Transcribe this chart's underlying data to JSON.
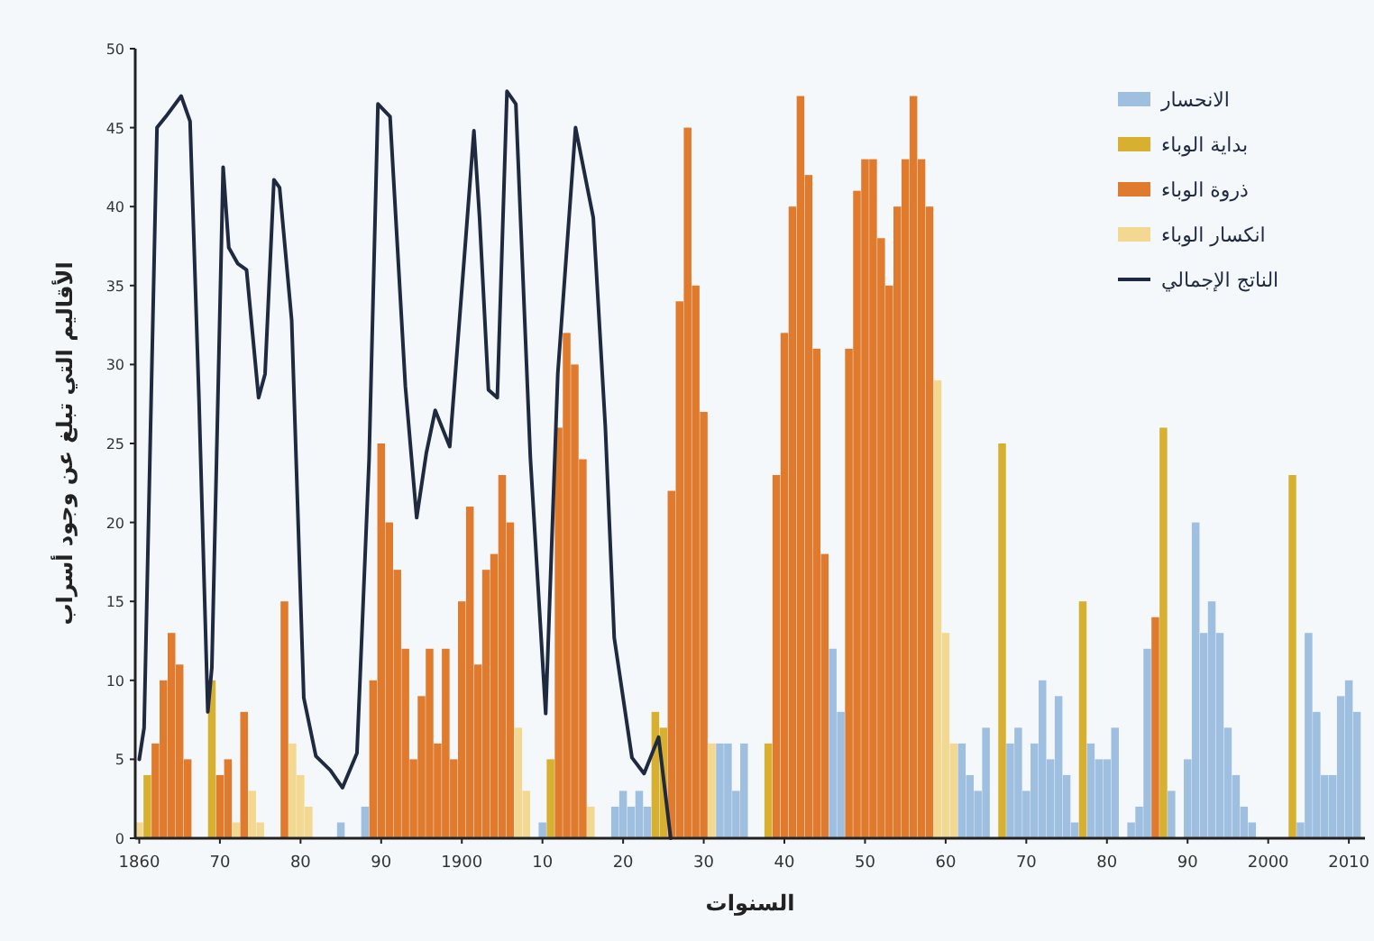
{
  "chart_data": {
    "type": "bar",
    "xlabel": "السنوات",
    "ylabel": "الأقاليم التي تبلغ عن وجود أسراب",
    "xlim": [
      1859.5,
      2012
    ],
    "ylim": [
      0,
      50
    ],
    "xticks": [
      1860,
      {
        "value": 1870,
        "label": "70"
      },
      {
        "value": 1880,
        "label": "80"
      },
      {
        "value": 1890,
        "label": "90"
      },
      1900,
      {
        "value": 1910,
        "label": "10"
      },
      {
        "value": 1920,
        "label": "20"
      },
      {
        "value": 1930,
        "label": "30"
      },
      {
        "value": 1940,
        "label": "40"
      },
      {
        "value": 1950,
        "label": "50"
      },
      {
        "value": 1960,
        "label": "60"
      },
      {
        "value": 1970,
        "label": "70"
      },
      {
        "value": 1980,
        "label": "80"
      },
      {
        "value": 1990,
        "label": "90"
      },
      2000,
      2010
    ],
    "yticks": [
      0,
      5,
      10,
      15,
      20,
      25,
      30,
      35,
      40,
      45,
      50
    ],
    "legend": "top right",
    "grid": false,
    "series": [
      {
        "name": "الانحسار",
        "color": "#9fbfe0",
        "x": [
          1885,
          1888,
          1910,
          1919,
          1920,
          1921,
          1922,
          1923,
          1932,
          1933,
          1934,
          1935,
          1946,
          1947,
          1962,
          1963,
          1964,
          1965,
          1968,
          1969,
          1970,
          1971,
          1972,
          1973,
          1974,
          1975,
          1976,
          1978,
          1979,
          1980,
          1981,
          1983,
          1984,
          1985,
          1988,
          1990,
          1991,
          1992,
          1993,
          1994,
          1995,
          1996,
          1997,
          1998,
          2004,
          2005,
          2006,
          2007,
          2008,
          2009,
          2010,
          2011
        ],
        "values": [
          1,
          2,
          1,
          2,
          3,
          2,
          3,
          2,
          6,
          6,
          3,
          6,
          12,
          8,
          6,
          4,
          3,
          7,
          6,
          7,
          3,
          6,
          10,
          5,
          9,
          4,
          1,
          6,
          5,
          5,
          7,
          1,
          2,
          12,
          3,
          5,
          20,
          13,
          15,
          13,
          7,
          4,
          2,
          1,
          1,
          13,
          8,
          4,
          4,
          9,
          10,
          8
        ]
      },
      {
        "name": "بداية الوباء",
        "color": "#d8b030",
        "x": [
          1861,
          1869,
          1911,
          1924,
          1925,
          1938,
          1967,
          1977,
          1987,
          2003
        ],
        "values": [
          4,
          10,
          5,
          8,
          7,
          6,
          25,
          15,
          26,
          23
        ]
      },
      {
        "name": "ذروة الوباء",
        "color": "#e07b2e",
        "x": [
          1862,
          1863,
          1864,
          1865,
          1866,
          1870,
          1871,
          1873,
          1878,
          1889,
          1890,
          1891,
          1892,
          1893,
          1894,
          1895,
          1896,
          1897,
          1898,
          1899,
          1900,
          1901,
          1902,
          1903,
          1904,
          1905,
          1906,
          1912,
          1913,
          1914,
          1915,
          1926,
          1927,
          1928,
          1929,
          1930,
          1939,
          1940,
          1941,
          1942,
          1943,
          1944,
          1945,
          1948,
          1949,
          1950,
          1951,
          1952,
          1953,
          1954,
          1955,
          1956,
          1957,
          1958,
          1986
        ],
        "values": [
          6,
          10,
          13,
          11,
          5,
          4,
          5,
          8,
          15,
          10,
          25,
          20,
          17,
          12,
          5,
          9,
          12,
          6,
          12,
          5,
          15,
          21,
          11,
          17,
          18,
          23,
          20,
          26,
          32,
          30,
          24,
          22,
          34,
          45,
          35,
          27,
          23,
          32,
          40,
          47,
          42,
          31,
          18,
          31,
          41,
          43,
          43,
          38,
          35,
          40,
          43,
          47,
          43,
          40,
          14
        ]
      },
      {
        "name": "انكسار الوباء",
        "color": "#f2d890",
        "x": [
          1860,
          1872,
          1874,
          1875,
          1879,
          1880,
          1881,
          1907,
          1908,
          1916,
          1931,
          1959,
          1960,
          1961
        ],
        "values": [
          1,
          1,
          3,
          1,
          6,
          4,
          2,
          7,
          3,
          2,
          6,
          29,
          13,
          6
        ]
      },
      {
        "name": "الناتج الإجمالي",
        "type": "line",
        "color": "#1f2a40",
        "x": [
          1860,
          1860.6,
          1862.2,
          1863.3,
          1865.2,
          1866.3,
          1867.4,
          1868.5,
          1869,
          1870.4,
          1871.1,
          1872.2,
          1873.3,
          1874.8,
          1875.6,
          1876.7,
          1877.4,
          1878.9,
          1880.4,
          1881.9,
          1883.7,
          1885.2,
          1887,
          1888.5,
          1889.6,
          1891.1,
          1893,
          1894.4,
          1895.6,
          1896.7,
          1898.5,
          1900.4,
          1901.5,
          1902.2,
          1903.3,
          1904.4,
          1905.6,
          1906.7,
          1908.5,
          1910.4,
          1911.9,
          1914.1,
          1916.3,
          1917.8,
          1918.9,
          1921.1,
          1922.6,
          1924.4,
          1925.9
        ],
        "values": [
          5,
          7,
          45,
          45.7,
          47,
          45.4,
          27.9,
          8,
          10.8,
          42.5,
          37.4,
          36.4,
          36,
          27.9,
          29.4,
          41.7,
          41.2,
          32.8,
          8.9,
          5.2,
          4.3,
          3.2,
          5.4,
          24,
          46.5,
          45.7,
          28.6,
          20.3,
          24.4,
          27.1,
          24.8,
          37.4,
          44.8,
          39.3,
          28.4,
          27.9,
          47.3,
          46.5,
          24.1,
          7.9,
          29.4,
          45,
          39.3,
          26,
          12.7,
          5.1,
          4.1,
          6.4,
          0
        ]
      }
    ]
  }
}
